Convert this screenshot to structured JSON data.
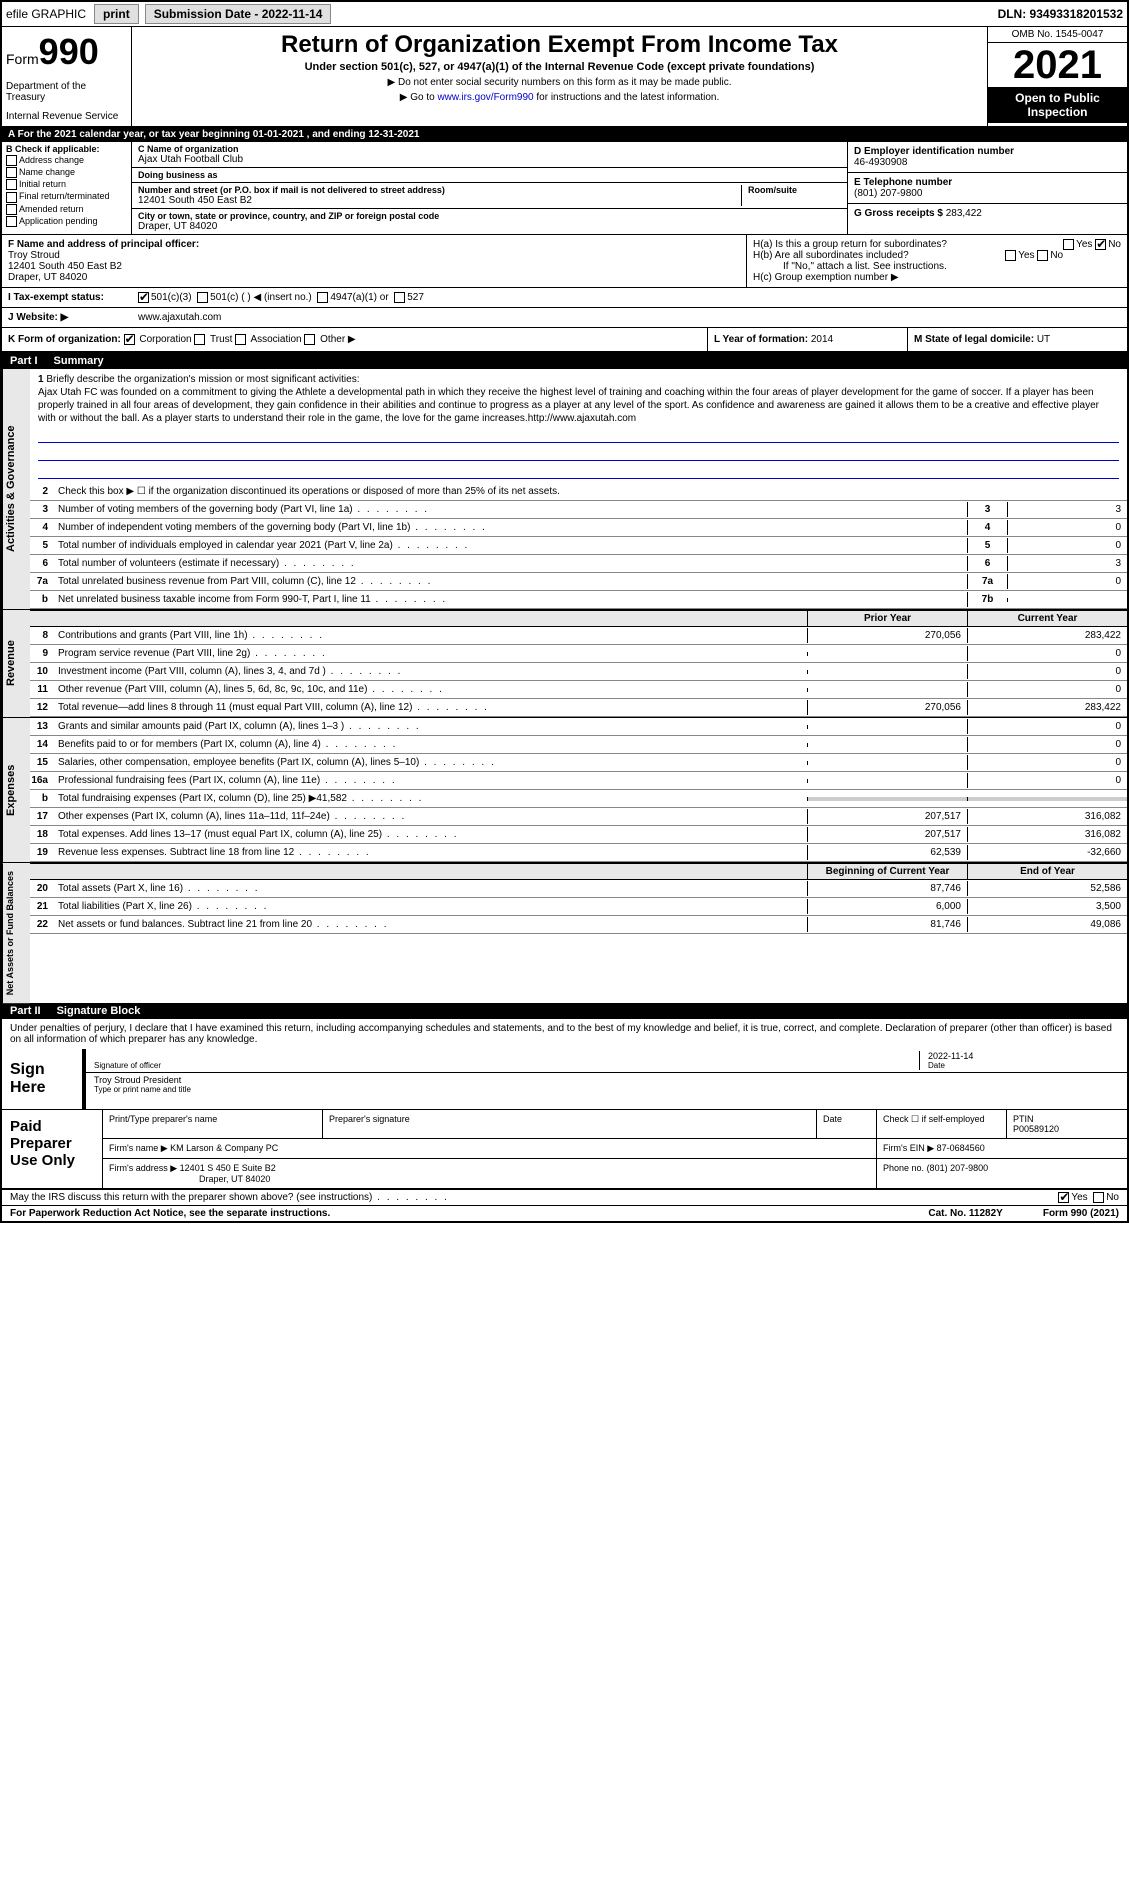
{
  "topbar": {
    "efile": "efile GRAPHIC",
    "print": "print",
    "submission": "Submission Date - 2022-11-14",
    "dln": "DLN: 93493318201532"
  },
  "header": {
    "form_prefix": "Form",
    "form_number": "990",
    "dept": "Department of the Treasury",
    "irs": "Internal Revenue Service",
    "title": "Return of Organization Exempt From Income Tax",
    "subtitle": "Under section 501(c), 527, or 4947(a)(1) of the Internal Revenue Code (except private foundations)",
    "note1": "▶ Do not enter social security numbers on this form as it may be made public.",
    "note2_pre": "▶ Go to ",
    "note2_link": "www.irs.gov/Form990",
    "note2_post": " for instructions and the latest information.",
    "omb": "OMB No. 1545-0047",
    "year": "2021",
    "open": "Open to Public Inspection"
  },
  "row_a": "A For the 2021 calendar year, or tax year beginning 01-01-2021    , and ending 12-31-2021",
  "section_b": {
    "label": "B Check if applicable:",
    "items": [
      "Address change",
      "Name change",
      "Initial return",
      "Final return/terminated",
      "Amended return",
      "Application pending"
    ]
  },
  "section_c": {
    "name_label": "C Name of organization",
    "name": "Ajax Utah Football Club",
    "dba_label": "Doing business as",
    "dba": "",
    "addr_label": "Number and street (or P.O. box if mail is not delivered to street address)",
    "addr": "12401 South 450 East B2",
    "room_label": "Room/suite",
    "city_label": "City or town, state or province, country, and ZIP or foreign postal code",
    "city": "Draper, UT  84020"
  },
  "section_d": {
    "ein_label": "D Employer identification number",
    "ein": "46-4930908",
    "phone_label": "E Telephone number",
    "phone": "(801) 207-9800",
    "gross_label": "G Gross receipts $",
    "gross": "283,422"
  },
  "section_f": {
    "label": "F  Name and address of principal officer:",
    "name": "Troy Stroud",
    "addr1": "12401 South 450 East B2",
    "addr2": "Draper, UT  84020"
  },
  "section_h": {
    "ha_label": "H(a)  Is this a group return for subordinates?",
    "hb_label": "H(b)  Are all subordinates included?",
    "hb_note": "If \"No,\" attach a list. See instructions.",
    "hc_label": "H(c)  Group exemption number ▶"
  },
  "row_i": {
    "label": "I   Tax-exempt status:",
    "opt1": "501(c)(3)",
    "opt2": "501(c) (  ) ◀ (insert no.)",
    "opt3": "4947(a)(1) or",
    "opt4": "527"
  },
  "row_j": {
    "label": "J   Website: ▶",
    "value": "www.ajaxutah.com"
  },
  "row_k": {
    "label": "K Form of organization:",
    "corp": "Corporation",
    "trust": "Trust",
    "assoc": "Association",
    "other": "Other ▶"
  },
  "row_l": {
    "label": "L Year of formation:",
    "value": "2014"
  },
  "row_m": {
    "label": "M State of legal domicile:",
    "value": "UT"
  },
  "part1": {
    "num": "Part I",
    "title": "Summary"
  },
  "mission": {
    "num": "1",
    "label": "Briefly describe the organization's mission or most significant activities:",
    "text": "Ajax Utah FC was founded on a commitment to giving the Athlete a developmental path in which they receive the highest level of training and coaching within the four areas of player development for the game of soccer. If a player has been properly trained in all four areas of development, they gain confidence in their abilities and continue to progress as a player at any level of the sport. As confidence and awareness are gained it allows them to be a creative and effective player with or without the ball. As a player starts to understand their role in the game, the love for the game increases.http://www.ajaxutah.com"
  },
  "vtabs": {
    "gov": "Activities & Governance",
    "rev": "Revenue",
    "exp": "Expenses",
    "net": "Net Assets or Fund Balances"
  },
  "gov_lines": [
    {
      "n": "2",
      "t": "Check this box ▶ ☐ if the organization discontinued its operations or disposed of more than 25% of its net assets."
    },
    {
      "n": "3",
      "t": "Number of voting members of the governing body (Part VI, line 1a)",
      "bn": "3",
      "bv": "3"
    },
    {
      "n": "4",
      "t": "Number of independent voting members of the governing body (Part VI, line 1b)",
      "bn": "4",
      "bv": "0"
    },
    {
      "n": "5",
      "t": "Total number of individuals employed in calendar year 2021 (Part V, line 2a)",
      "bn": "5",
      "bv": "0"
    },
    {
      "n": "6",
      "t": "Total number of volunteers (estimate if necessary)",
      "bn": "6",
      "bv": "3"
    },
    {
      "n": "7a",
      "t": "Total unrelated business revenue from Part VIII, column (C), line 12",
      "bn": "7a",
      "bv": "0"
    },
    {
      "n": "b",
      "t": "Net unrelated business taxable income from Form 990-T, Part I, line 11",
      "bn": "7b",
      "bv": ""
    }
  ],
  "col_hdrs": {
    "prior": "Prior Year",
    "current": "Current Year"
  },
  "rev_lines": [
    {
      "n": "8",
      "t": "Contributions and grants (Part VIII, line 1h)",
      "v1": "270,056",
      "v2": "283,422"
    },
    {
      "n": "9",
      "t": "Program service revenue (Part VIII, line 2g)",
      "v1": "",
      "v2": "0"
    },
    {
      "n": "10",
      "t": "Investment income (Part VIII, column (A), lines 3, 4, and 7d )",
      "v1": "",
      "v2": "0"
    },
    {
      "n": "11",
      "t": "Other revenue (Part VIII, column (A), lines 5, 6d, 8c, 9c, 10c, and 11e)",
      "v1": "",
      "v2": "0"
    },
    {
      "n": "12",
      "t": "Total revenue—add lines 8 through 11 (must equal Part VIII, column (A), line 12)",
      "v1": "270,056",
      "v2": "283,422"
    }
  ],
  "exp_lines": [
    {
      "n": "13",
      "t": "Grants and similar amounts paid (Part IX, column (A), lines 1–3 )",
      "v1": "",
      "v2": "0"
    },
    {
      "n": "14",
      "t": "Benefits paid to or for members (Part IX, column (A), line 4)",
      "v1": "",
      "v2": "0"
    },
    {
      "n": "15",
      "t": "Salaries, other compensation, employee benefits (Part IX, column (A), lines 5–10)",
      "v1": "",
      "v2": "0"
    },
    {
      "n": "16a",
      "t": "Professional fundraising fees (Part IX, column (A), line 11e)",
      "v1": "",
      "v2": "0"
    },
    {
      "n": "b",
      "t": "Total fundraising expenses (Part IX, column (D), line 25) ▶41,582",
      "v1": "",
      "v2": "",
      "shaded": true
    },
    {
      "n": "17",
      "t": "Other expenses (Part IX, column (A), lines 11a–11d, 11f–24e)",
      "v1": "207,517",
      "v2": "316,082"
    },
    {
      "n": "18",
      "t": "Total expenses. Add lines 13–17 (must equal Part IX, column (A), line 25)",
      "v1": "207,517",
      "v2": "316,082"
    },
    {
      "n": "19",
      "t": "Revenue less expenses. Subtract line 18 from line 12",
      "v1": "62,539",
      "v2": "-32,660"
    }
  ],
  "net_hdrs": {
    "begin": "Beginning of Current Year",
    "end": "End of Year"
  },
  "net_lines": [
    {
      "n": "20",
      "t": "Total assets (Part X, line 16)",
      "v1": "87,746",
      "v2": "52,586"
    },
    {
      "n": "21",
      "t": "Total liabilities (Part X, line 26)",
      "v1": "6,000",
      "v2": "3,500"
    },
    {
      "n": "22",
      "t": "Net assets or fund balances. Subtract line 21 from line 20",
      "v1": "81,746",
      "v2": "49,086"
    }
  ],
  "part2": {
    "num": "Part II",
    "title": "Signature Block"
  },
  "sig": {
    "declaration": "Under penalties of perjury, I declare that I have examined this return, including accompanying schedules and statements, and to the best of my knowledge and belief, it is true, correct, and complete. Declaration of preparer (other than officer) is based on all information of which preparer has any knowledge.",
    "sign_here": "Sign Here",
    "sig_label": "Signature of officer",
    "date_label": "Date",
    "date": "2022-11-14",
    "name": "Troy Stroud President",
    "name_label": "Type or print name and title"
  },
  "preparer": {
    "label": "Paid Preparer Use Only",
    "print_label": "Print/Type preparer's name",
    "sig_label": "Preparer's signature",
    "date_label": "Date",
    "check_label": "Check ☐ if self-employed",
    "ptin_label": "PTIN",
    "ptin": "P00589120",
    "firm_name_label": "Firm's name    ▶",
    "firm_name": "KM Larson & Company PC",
    "firm_ein_label": "Firm's EIN ▶",
    "firm_ein": "87-0684560",
    "firm_addr_label": "Firm's address ▶",
    "firm_addr": "12401 S 450 E Suite B2",
    "firm_city": "Draper, UT  84020",
    "phone_label": "Phone no.",
    "phone": "(801) 207-9800"
  },
  "bottom": {
    "discuss": "May the IRS discuss this return with the preparer shown above? (see instructions)",
    "yes": "Yes",
    "no": "No"
  },
  "footer": {
    "paperwork": "For Paperwork Reduction Act Notice, see the separate instructions.",
    "cat": "Cat. No. 11282Y",
    "form": "Form 990 (2021)"
  }
}
